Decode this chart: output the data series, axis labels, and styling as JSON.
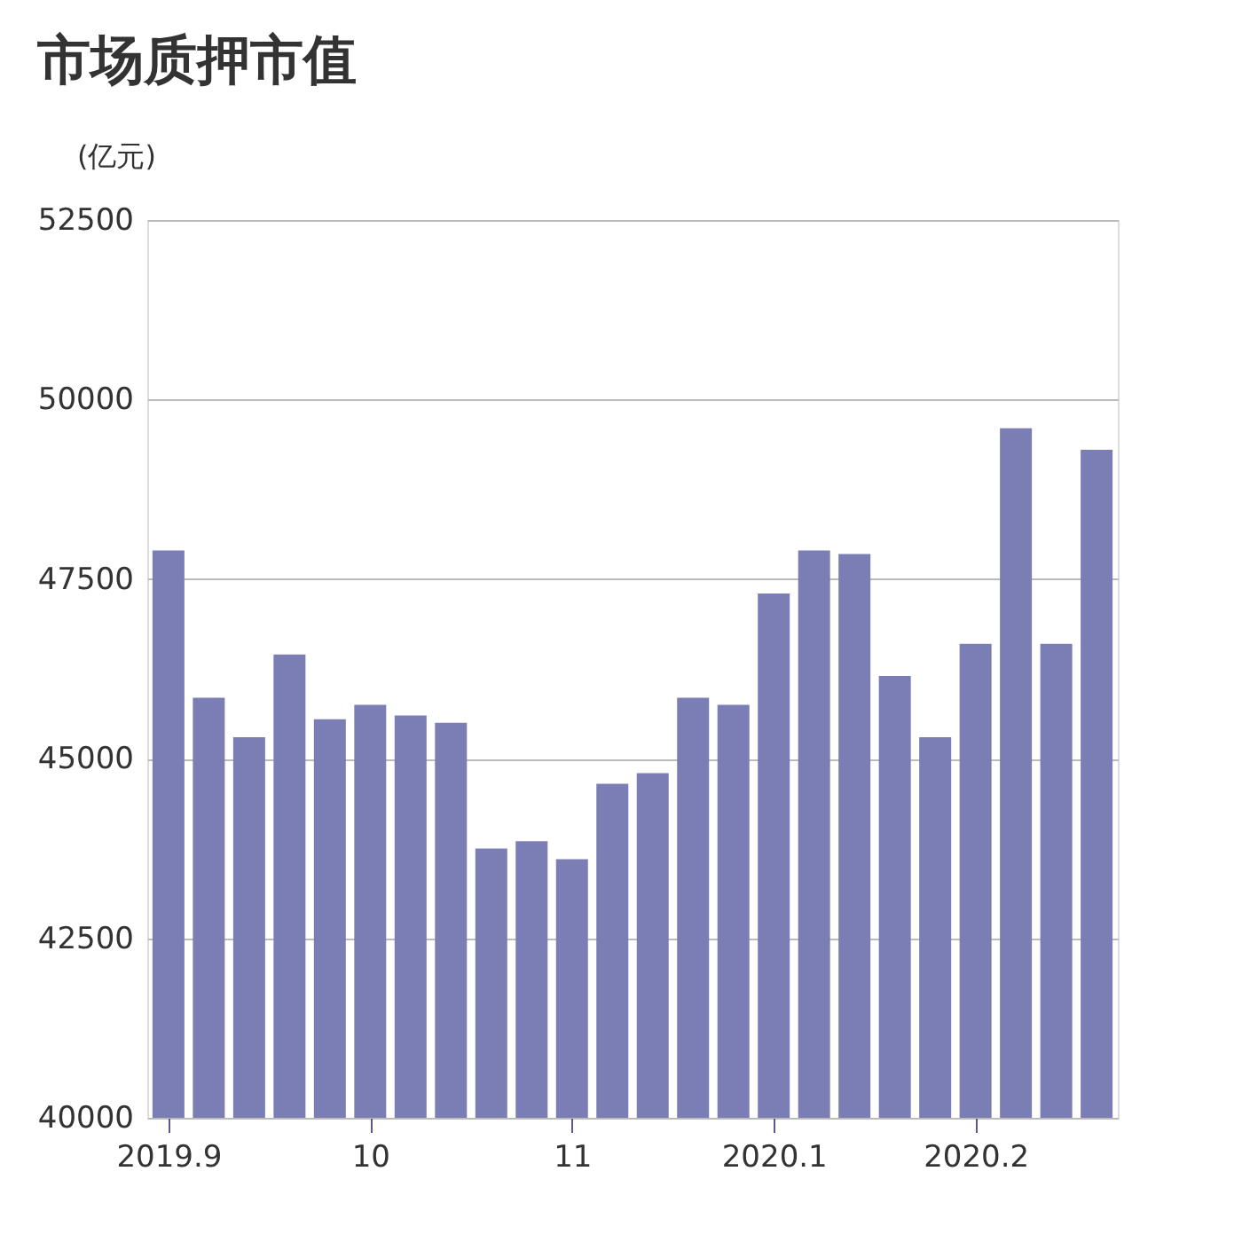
{
  "chart_data": {
    "type": "bar",
    "title": "市场质押市值",
    "ylabel": "(亿元)",
    "categories": [
      "2019.9",
      null,
      null,
      null,
      null,
      "10",
      null,
      null,
      null,
      null,
      "11",
      null,
      null,
      null,
      null,
      "2020.1",
      null,
      null,
      null,
      null,
      "2020.2",
      null,
      null,
      null
    ],
    "values": [
      47900,
      45850,
      45300,
      46450,
      45550,
      45750,
      45600,
      45500,
      43750,
      43850,
      43600,
      44650,
      44800,
      45850,
      45750,
      47300,
      47900,
      47850,
      46150,
      45300,
      46600,
      49600,
      46600,
      49300
    ],
    "color": "#7b7db5",
    "ylim": [
      40000,
      52500
    ],
    "yticks": [
      40000,
      42500,
      45000,
      47500,
      50000,
      52500
    ],
    "grid": "y"
  }
}
